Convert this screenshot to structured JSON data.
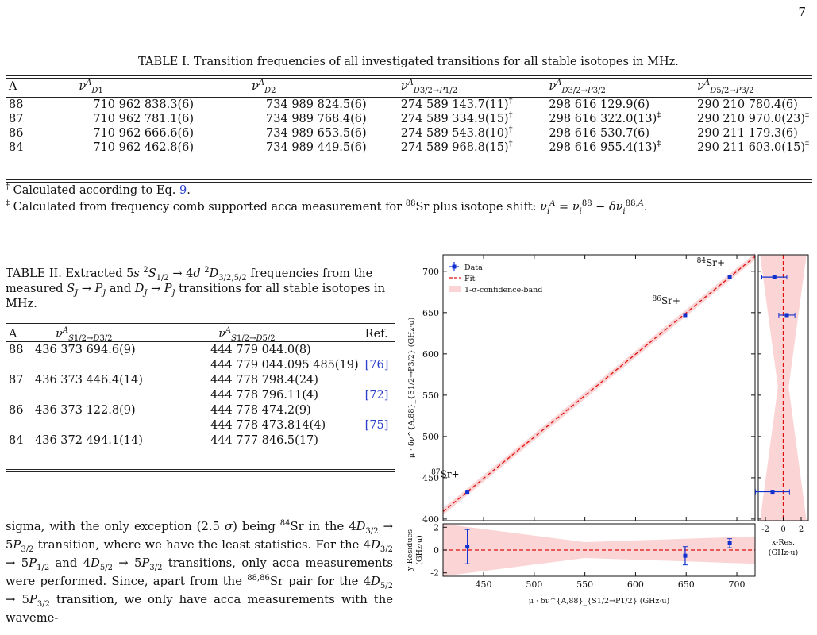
{
  "page_number": "7",
  "table1": {
    "caption": "TABLE I. Transition frequencies of all investigated transitions for all stable isotopes in MHz.",
    "headers": [
      "A",
      "ν_{D1}^A",
      "ν_{D2}^A",
      "ν_{D3/2→P1/2}^A",
      "ν_{D3/2→P3/2}^A",
      "ν_{D5/2→P3/2}^A"
    ],
    "rows": [
      [
        "88",
        "710 962 838.3(6)",
        "734 989 824.5(6)",
        "274 589 143.7(11)†",
        "298 616 129.9(6)",
        "290 210 780.4(6)"
      ],
      [
        "87",
        "710 962 781.1(6)",
        "734 989 768.4(6)",
        "274 589 334.9(15)†",
        "298 616 322.0(13)‡",
        "290 210 970.0(23)‡"
      ],
      [
        "86",
        "710 962 666.6(6)",
        "734 989 653.5(6)",
        "274 589 543.8(10)†",
        "298 616 530.7(6)",
        "290 211 179.3(6)"
      ],
      [
        "84",
        "710 962 462.8(6)",
        "734 989 449.5(6)",
        "274 589 968.8(15)†",
        "298 616 955.4(13)‡",
        "290 211 603.0(15)‡"
      ]
    ],
    "footnote1": "† Calculated according to Eq. 9.",
    "footnote2": "‡ Calculated from frequency comb supported acca measurement for 88Sr plus isotope shift: ν_i^A = ν_i^88 − δν_i^{88,A}."
  },
  "table2": {
    "caption": "TABLE II. Extracted 5s 2S1/2 → 4d 2D3/2,5/2 frequencies from the measured SJ → PJ and DJ → PJ transitions for all stable isotopes in MHz.",
    "headers": [
      "A",
      "ν_{S1/2→D3/2}^A",
      "ν_{S1/2→D5/2}^A",
      "Ref."
    ],
    "rows": [
      [
        "88",
        "436 373 694.6(9)",
        "444 779 044.0(8)",
        ""
      ],
      [
        "",
        "",
        "444 779 044.095 485(19)",
        "[76]"
      ],
      [
        "87",
        "436 373 446.4(14)",
        "444 778 798.4(24)",
        ""
      ],
      [
        "",
        "",
        "444 778 796.11(4)",
        "[72]"
      ],
      [
        "86",
        "436 373 122.8(9)",
        "444 778 474.2(9)",
        ""
      ],
      [
        "",
        "",
        "444 778 473.814(4)",
        "[75]"
      ],
      [
        "84",
        "436 372 494.1(14)",
        "444 777 846.5(17)",
        ""
      ]
    ]
  },
  "body_text": "sigma, with the only exception (2.5 σ) being 84Sr in the 4D3/2 → 5P3/2 transition, where we have the least statistics. For the 4D3/2 → 5P1/2 and 4D5/2 → 5P3/2 transitions, only acca measurements were performed. Since, apart from the 88,86Sr pair for the 4D5/2 → 5P3/2 transition, we only have acca measurements with the waveme-",
  "chart_data": {
    "type": "scatter",
    "legend": [
      "Data",
      "Fit",
      "1-σ-confidence-band"
    ],
    "legend_position": "top-left",
    "ylabel": "μ · δν^{A,88}_{S1/2→P3/2} (GHz·u)",
    "xlabel": "μ · δν^{A,88}_{S1/2→P1/2} (GHz·u)",
    "xlim": [
      410,
      718
    ],
    "ylim": [
      398,
      720
    ],
    "xticks": [
      450,
      500,
      550,
      600,
      650,
      700
    ],
    "yticks": [
      400,
      450,
      500,
      550,
      600,
      650,
      700
    ],
    "points": [
      {
        "label": "87Sr+",
        "x": 434,
        "y": 433
      },
      {
        "label": "86Sr+",
        "x": 649,
        "y": 647
      },
      {
        "label": "84Sr+",
        "x": 693,
        "y": 693
      }
    ],
    "fit_line": [
      [
        410,
        409
      ],
      [
        718,
        718
      ]
    ],
    "residuals": {
      "ylabel": "y-Residues (GHz·u)",
      "ylim": [
        -2.3,
        2.3
      ],
      "yticks": [
        -2,
        0,
        2
      ],
      "y": [
        0.3,
        -0.5,
        0.6
      ],
      "yerr": [
        1.5,
        0.8,
        0.4
      ]
    },
    "side_residuals": {
      "xlabel": "x-Res. (GHz·u)",
      "xlim": [
        -2.8,
        2.8
      ],
      "xticks": [
        -2,
        0,
        2
      ],
      "x": [
        -1.2,
        0.4,
        -1.0
      ],
      "xerr": [
        1.9,
        0.9,
        1.4
      ]
    },
    "colors": {
      "data": "#1030d0",
      "fit": "#e01010",
      "band": "#fbd5d5"
    }
  }
}
